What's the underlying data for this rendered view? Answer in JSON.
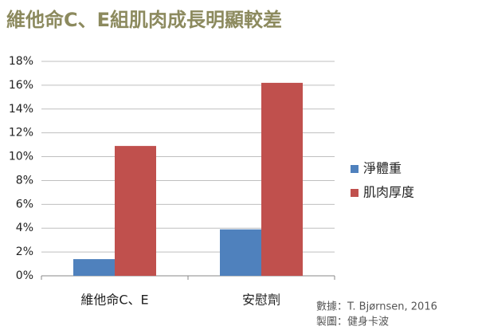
{
  "chart_data": {
    "type": "bar",
    "title": "維他命C、E組肌肉成長明顯較差",
    "categories": [
      "維他命C、E",
      "安慰劑"
    ],
    "series": [
      {
        "name": "淨體重",
        "color": "#4f81bd",
        "values": [
          1.4,
          3.9
        ]
      },
      {
        "name": "肌肉厚度",
        "color": "#c0504d",
        "values": [
          10.9,
          16.2
        ]
      }
    ],
    "ylim": [
      0,
      18
    ],
    "yticks": [
      {
        "value": 0,
        "label": "0%"
      },
      {
        "value": 2,
        "label": "2%"
      },
      {
        "value": 4,
        "label": "4%"
      },
      {
        "value": 6,
        "label": "6%"
      },
      {
        "value": 8,
        "label": "8%"
      },
      {
        "value": 10,
        "label": "10%"
      },
      {
        "value": 12,
        "label": "12%"
      },
      {
        "value": 14,
        "label": "14%"
      },
      {
        "value": 16,
        "label": "16%"
      },
      {
        "value": 18,
        "label": "18%"
      }
    ],
    "grid": true,
    "legend": "right",
    "annotations": [
      "數據：T. Bjørnsen, 2016",
      "製圖：健身卡波"
    ]
  }
}
